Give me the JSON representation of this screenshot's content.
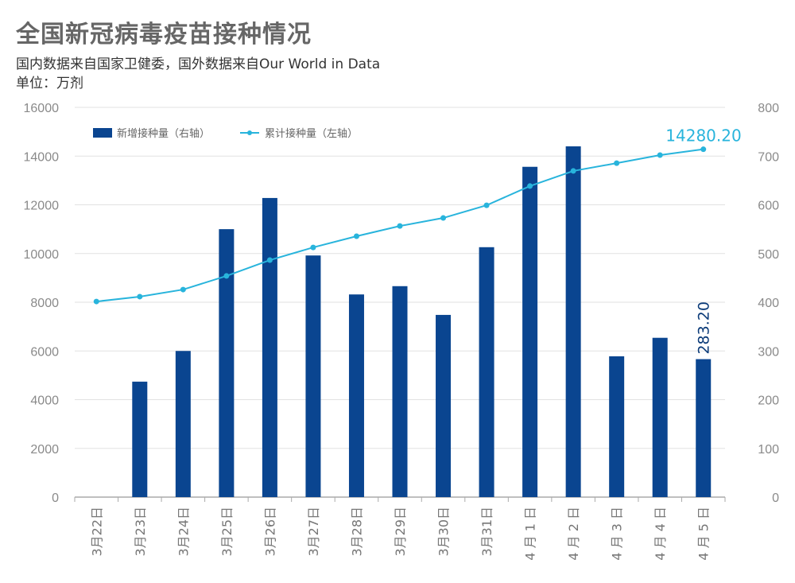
{
  "title": "全国新冠病毒疫苗接种情况",
  "subtitle": "国内数据来自国家卫健委，国外数据来自Our World in Data",
  "unit": "单位：万剂",
  "chart_data": {
    "type": "bar+line",
    "categories": [
      "3月22日",
      "3月23日",
      "3月24日",
      "3月25日",
      "3月26日",
      "3月27日",
      "3月28日",
      "3月29日",
      "3月30日",
      "3月31日",
      "4 月 1 日",
      "4 月 2 日",
      "4 月 3 日",
      "4 月 4 日",
      "4 月 5 日"
    ],
    "series": [
      {
        "name": "新增接种量（右轴）",
        "type": "bar",
        "axis": "right",
        "color": "#0a4590",
        "values": [
          0,
          237,
          300,
          550,
          614,
          496,
          416,
          433,
          374,
          513,
          678,
          720,
          289,
          327,
          283.2
        ]
      },
      {
        "name": "累计接种量（左轴）",
        "type": "line",
        "axis": "left",
        "color": "#28b4dc",
        "values": [
          8030,
          8230,
          8520,
          9080,
          9730,
          10250,
          10710,
          11130,
          11460,
          11980,
          12770,
          13390,
          13710,
          14040,
          14280.2
        ]
      }
    ],
    "annotations": [
      {
        "series": 1,
        "index": 14,
        "text": "14280.20"
      },
      {
        "series": 0,
        "index": 14,
        "text": "283.20"
      }
    ],
    "left_axis": {
      "range": [
        0,
        16000
      ],
      "ticks": [
        "0",
        "2000",
        "4000",
        "6000",
        "8000",
        "10000",
        "12000",
        "14000",
        "16000"
      ]
    },
    "right_axis": {
      "range": [
        0,
        800
      ],
      "ticks": [
        "0",
        "100",
        "200",
        "300",
        "400",
        "500",
        "600",
        "700",
        "800"
      ]
    },
    "grid": true,
    "legend_placement": "top-left"
  }
}
